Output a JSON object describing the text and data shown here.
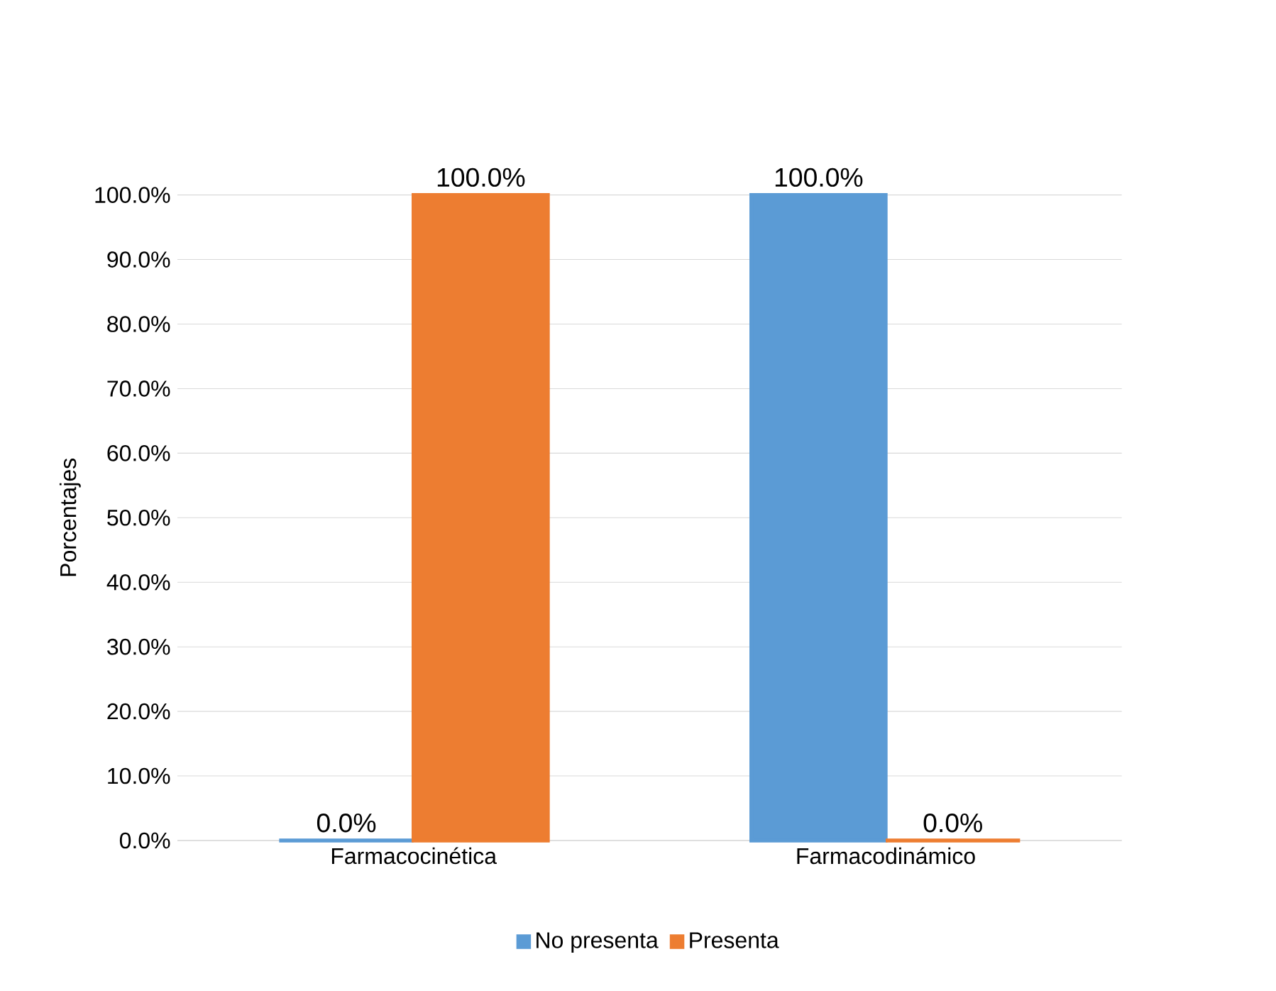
{
  "chart_data": {
    "type": "bar",
    "ylabel": "Porcentajes",
    "categories": [
      "Farmacocinética",
      "Farmacodinámico"
    ],
    "series": [
      {
        "name": "No presenta",
        "color": "#5b9bd5",
        "values": [
          0,
          100
        ],
        "value_labels": [
          "0.0%",
          "100.0%"
        ]
      },
      {
        "name": "Presenta",
        "color": "#ed7d31",
        "values": [
          100,
          0
        ],
        "value_labels": [
          "100.0%",
          "0.0%"
        ]
      }
    ],
    "ylim": [
      0,
      100
    ],
    "yticks": [
      {
        "value": 0,
        "label": "0.0%"
      },
      {
        "value": 10,
        "label": "10.0%"
      },
      {
        "value": 20,
        "label": "20.0%"
      },
      {
        "value": 30,
        "label": "30.0%"
      },
      {
        "value": 40,
        "label": "40.0%"
      },
      {
        "value": 50,
        "label": "50.0%"
      },
      {
        "value": 60,
        "label": "60.0%"
      },
      {
        "value": 70,
        "label": "70.0%"
      },
      {
        "value": 80,
        "label": "80.0%"
      },
      {
        "value": 90,
        "label": "90.0%"
      },
      {
        "value": 100,
        "label": "100.0%"
      }
    ],
    "grid": "y",
    "legend": "bottom"
  }
}
